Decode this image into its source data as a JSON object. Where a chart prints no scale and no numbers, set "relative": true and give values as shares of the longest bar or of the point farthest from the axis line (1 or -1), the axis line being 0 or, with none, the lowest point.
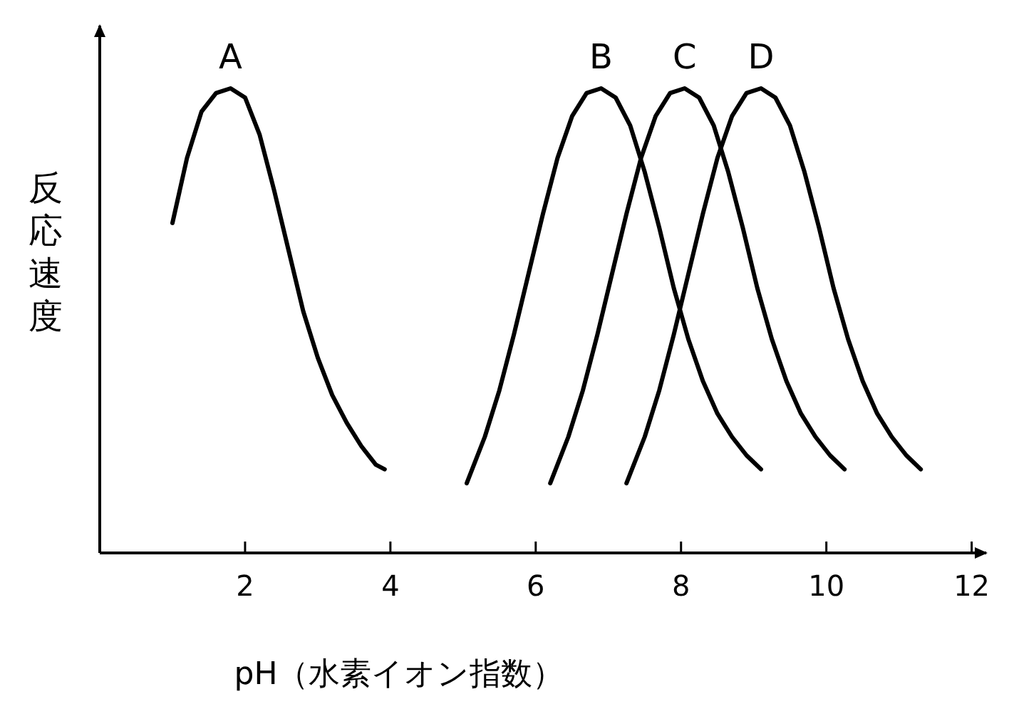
{
  "chart_data": {
    "type": "line",
    "xlabel": "pH（水素イオン指数）",
    "ylabel": "反応速度",
    "relative": true,
    "xlim": [
      0,
      12.2
    ],
    "xticks": [
      2,
      4,
      6,
      8,
      10,
      12
    ],
    "series": [
      {
        "name": "A",
        "color": "#000000",
        "x": [
          1.0,
          1.2,
          1.4,
          1.6,
          1.8,
          2.0,
          2.2,
          2.4,
          2.6,
          2.8,
          3.0,
          3.2,
          3.4,
          3.6,
          3.8,
          3.92
        ],
        "values": [
          0.71,
          0.85,
          0.95,
          0.99,
          1.0,
          0.98,
          0.9,
          0.78,
          0.65,
          0.52,
          0.42,
          0.34,
          0.28,
          0.23,
          0.19,
          0.18
        ]
      },
      {
        "name": "B",
        "color": "#000000",
        "x": [
          5.05,
          5.3,
          5.5,
          5.7,
          5.9,
          6.1,
          6.3,
          6.5,
          6.7,
          6.9,
          7.1,
          7.3,
          7.5,
          7.7,
          7.9,
          8.1,
          8.3,
          8.5,
          8.7,
          8.9,
          9.1
        ],
        "values": [
          0.15,
          0.25,
          0.35,
          0.47,
          0.6,
          0.73,
          0.85,
          0.94,
          0.99,
          1.0,
          0.98,
          0.92,
          0.82,
          0.7,
          0.57,
          0.46,
          0.37,
          0.3,
          0.25,
          0.21,
          0.18
        ]
      },
      {
        "name": "C",
        "color": "#000000",
        "x": [
          6.2,
          6.45,
          6.65,
          6.85,
          7.05,
          7.25,
          7.45,
          7.65,
          7.85,
          8.05,
          8.25,
          8.45,
          8.65,
          8.85,
          9.05,
          9.25,
          9.45,
          9.65,
          9.85,
          10.05,
          10.25
        ],
        "values": [
          0.15,
          0.25,
          0.35,
          0.47,
          0.6,
          0.73,
          0.85,
          0.94,
          0.99,
          1.0,
          0.98,
          0.92,
          0.82,
          0.7,
          0.57,
          0.46,
          0.37,
          0.3,
          0.25,
          0.21,
          0.18
        ]
      },
      {
        "name": "D",
        "color": "#000000",
        "x": [
          7.25,
          7.5,
          7.7,
          7.9,
          8.1,
          8.3,
          8.5,
          8.7,
          8.9,
          9.1,
          9.3,
          9.5,
          9.7,
          9.9,
          10.1,
          10.3,
          10.5,
          10.7,
          10.9,
          11.1,
          11.3
        ],
        "values": [
          0.15,
          0.25,
          0.35,
          0.47,
          0.6,
          0.73,
          0.85,
          0.94,
          0.99,
          1.0,
          0.98,
          0.92,
          0.82,
          0.7,
          0.57,
          0.46,
          0.37,
          0.3,
          0.25,
          0.21,
          0.18
        ]
      }
    ]
  }
}
